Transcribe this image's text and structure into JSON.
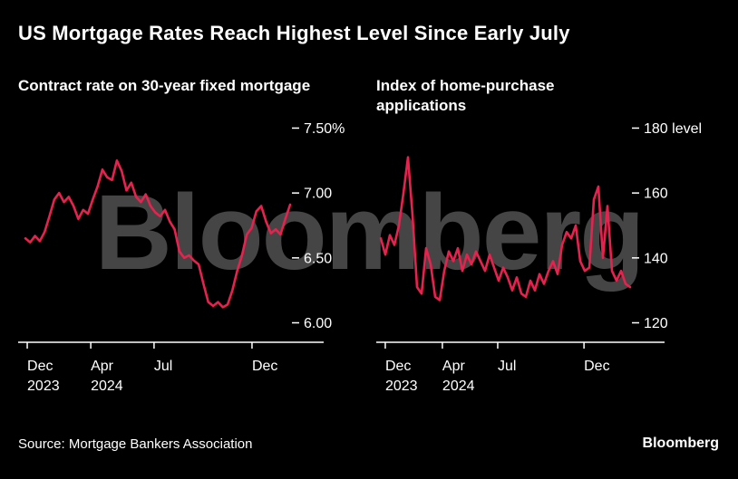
{
  "title": "US Mortgage Rates Reach Highest Level Since Early July",
  "watermark": "Bloomberg",
  "source": "Source: Mortgage Bankers Association",
  "brand_logo": "Bloomberg",
  "colors": {
    "background": "#000000",
    "line": "#e6224e",
    "axis": "#ffffff",
    "text": "#ffffff",
    "watermark": "#454545"
  },
  "chart_data": [
    {
      "type": "line",
      "title": "Contract rate on 30-year fixed mortgage",
      "unit": "%",
      "x_range": "Dec 2023 - Jan 2025",
      "ylim": [
        5.85,
        7.58
      ],
      "yticks": [
        {
          "value": 7.5,
          "label": "7.50%"
        },
        {
          "value": 7.0,
          "label": "7.00"
        },
        {
          "value": 6.5,
          "label": "6.50"
        },
        {
          "value": 6.0,
          "label": "6.00"
        }
      ],
      "xticks": [
        {
          "pos": 0.007,
          "lines": [
            "Dec",
            "2023"
          ]
        },
        {
          "pos": 0.247,
          "lines": [
            "Apr",
            "2024"
          ]
        },
        {
          "pos": 0.486,
          "lines": [
            "Jul"
          ]
        },
        {
          "pos": 0.856,
          "lines": [
            "Dec"
          ]
        }
      ],
      "values": [
        6.65,
        6.62,
        6.67,
        6.63,
        6.7,
        6.82,
        6.95,
        7.0,
        6.93,
        6.97,
        6.9,
        6.8,
        6.87,
        6.84,
        6.95,
        7.05,
        7.18,
        7.12,
        7.1,
        7.25,
        7.17,
        7.02,
        7.08,
        6.97,
        6.93,
        6.99,
        6.9,
        6.85,
        6.82,
        6.87,
        6.78,
        6.72,
        6.55,
        6.5,
        6.52,
        6.48,
        6.45,
        6.3,
        6.16,
        6.13,
        6.16,
        6.12,
        6.14,
        6.25,
        6.4,
        6.52,
        6.68,
        6.73,
        6.86,
        6.9,
        6.78,
        6.69,
        6.72,
        6.68,
        6.8,
        6.91
      ]
    },
    {
      "type": "line",
      "title": "Index of home-purchase applications",
      "unit": "level",
      "x_range": "Dec 2023 - Jan 2025",
      "ylim": [
        114,
        183.2
      ],
      "yticks": [
        {
          "value": 180,
          "label": "180 level"
        },
        {
          "value": 160,
          "label": "160"
        },
        {
          "value": 140,
          "label": "140"
        },
        {
          "value": 120,
          "label": "120"
        }
      ],
      "xticks": [
        {
          "pos": 0.018,
          "lines": [
            "Dec",
            "2023"
          ]
        },
        {
          "pos": 0.247,
          "lines": [
            "Apr",
            "2024"
          ]
        },
        {
          "pos": 0.469,
          "lines": [
            "Jul"
          ]
        },
        {
          "pos": 0.815,
          "lines": [
            "Dec"
          ]
        }
      ],
      "values": [
        146,
        141,
        147,
        144,
        150,
        160,
        171,
        153,
        131,
        129,
        143,
        138,
        128,
        127,
        136,
        142,
        139,
        143,
        136,
        141,
        138,
        142,
        139,
        136,
        141,
        137,
        133,
        137,
        134,
        130,
        134,
        129,
        128,
        133,
        130,
        135,
        132,
        136,
        139,
        135,
        144,
        148,
        146,
        150,
        139,
        136,
        137,
        158,
        162,
        140,
        156,
        136,
        133,
        136,
        132,
        131
      ]
    }
  ]
}
